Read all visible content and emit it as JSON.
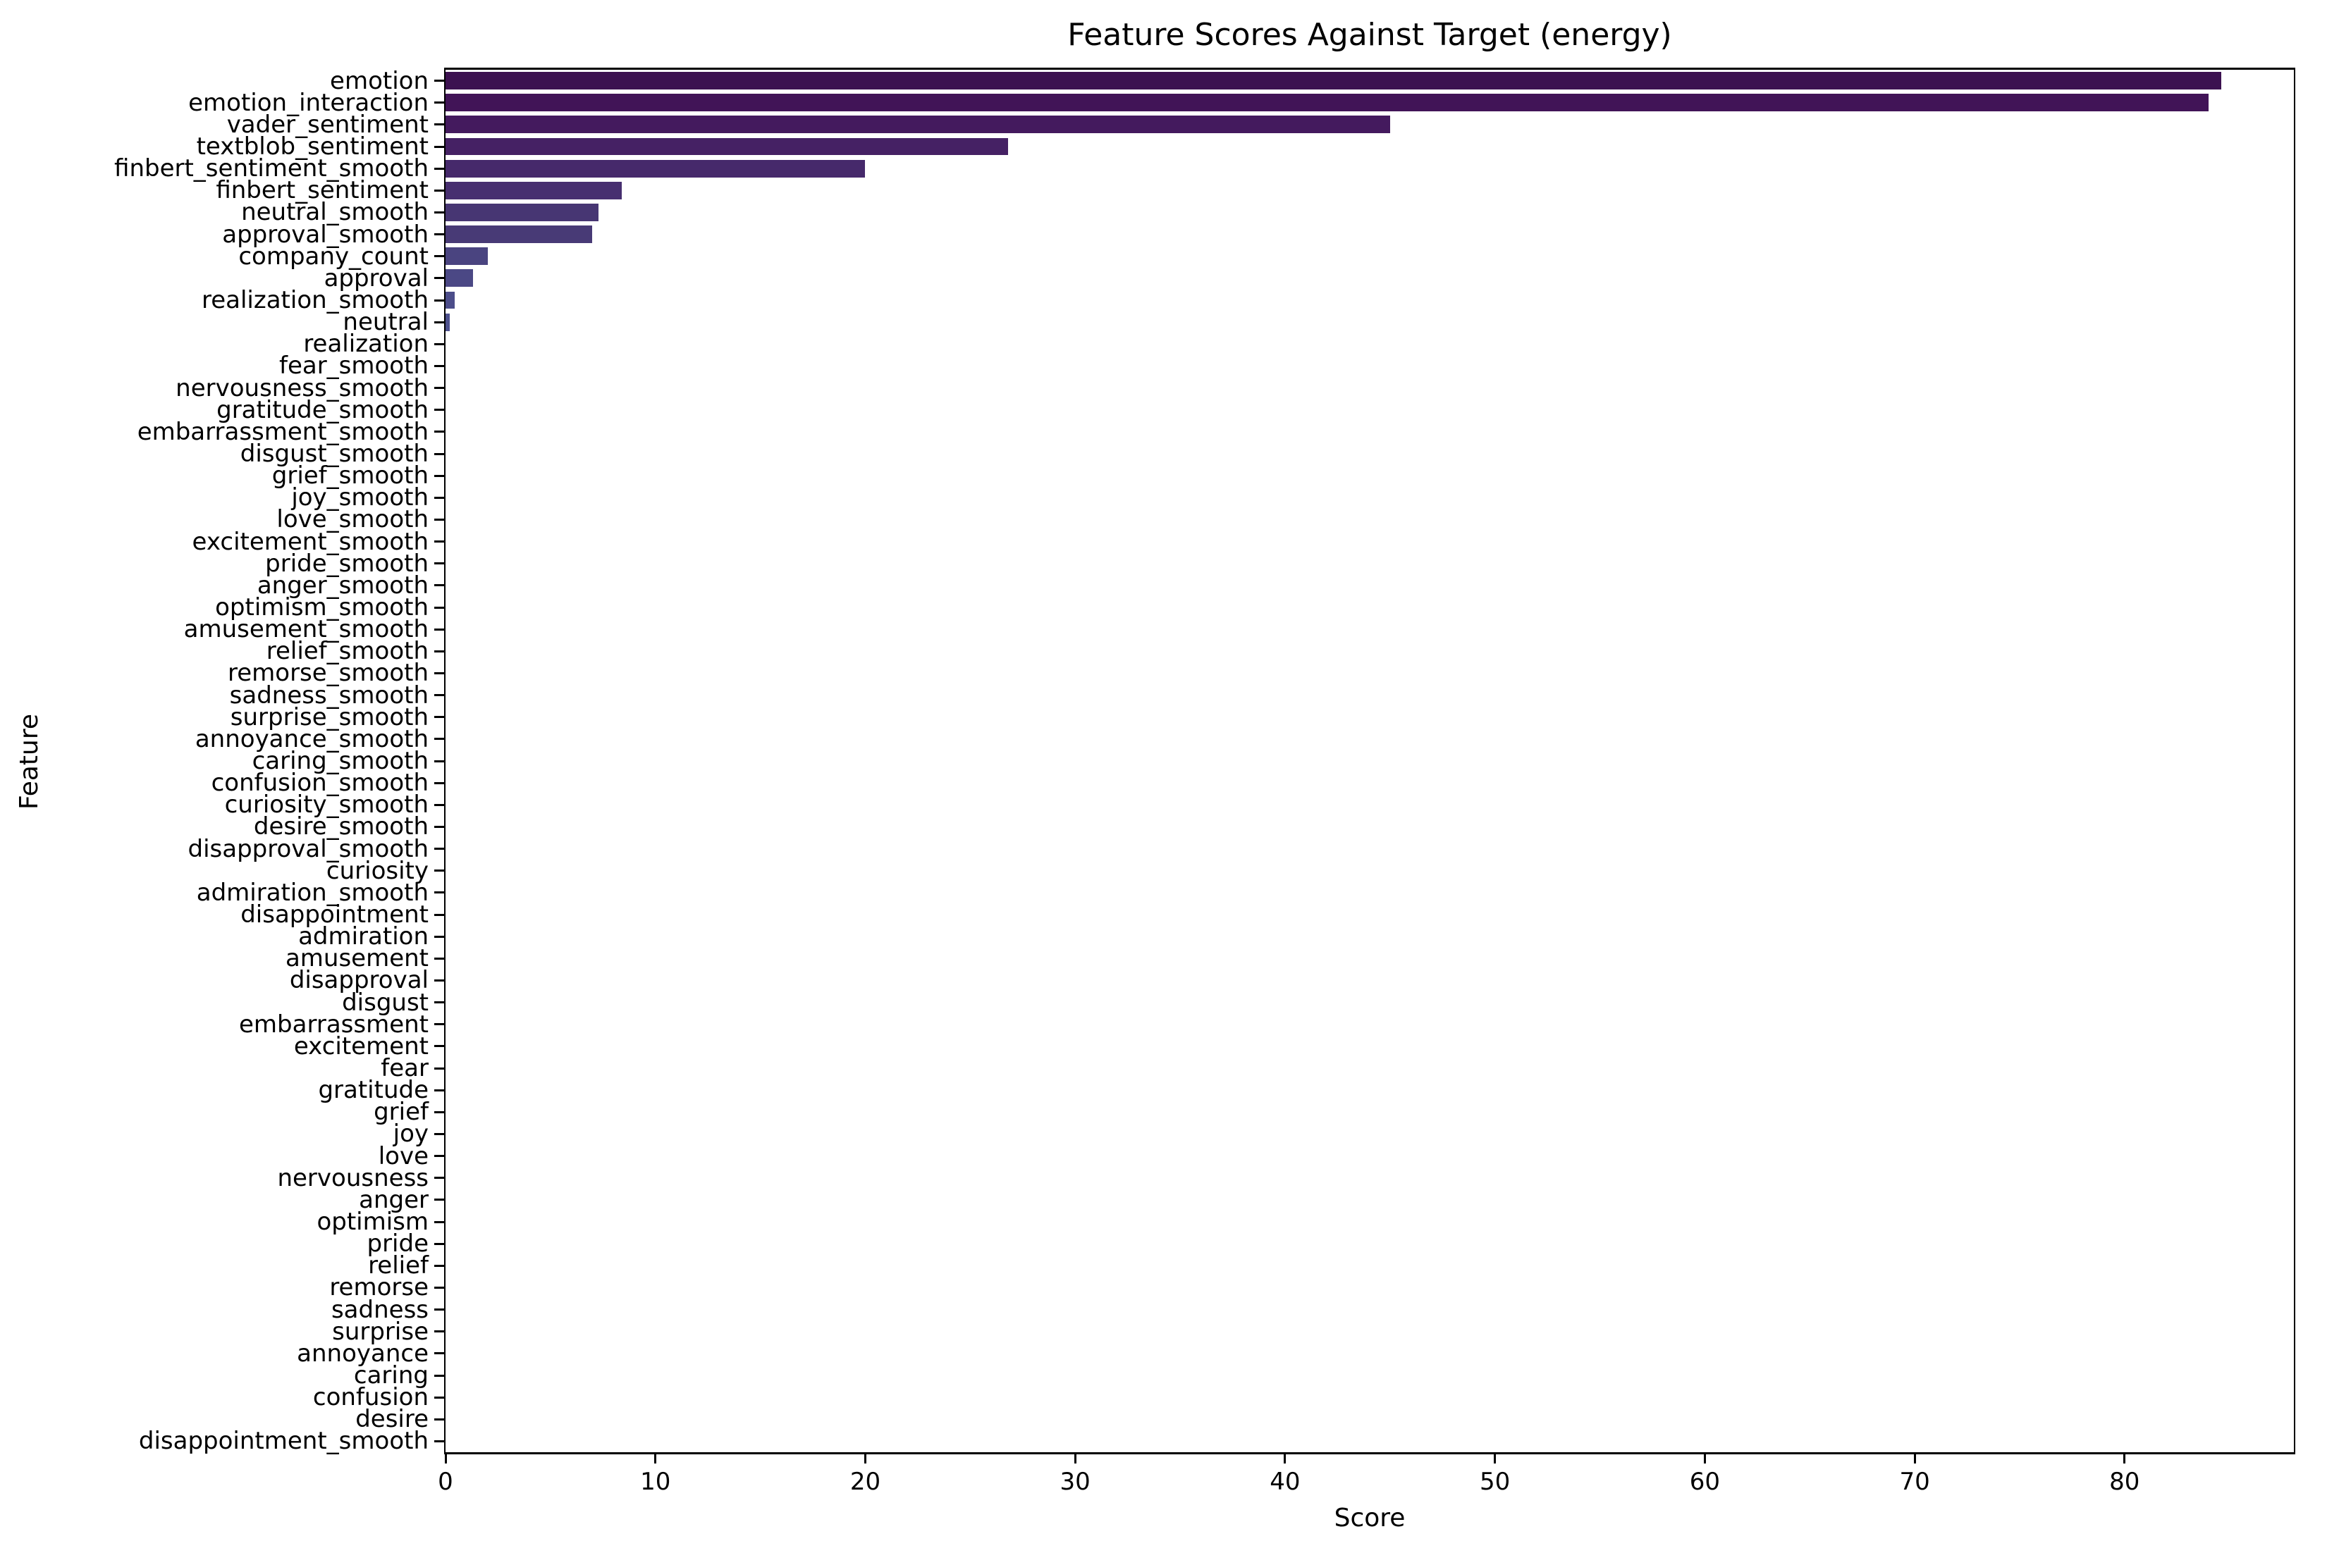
{
  "figure": {
    "background": "#ffffff",
    "text_color": "#000000",
    "axis_color": "#000000"
  },
  "chart_data": {
    "type": "bar",
    "orientation": "horizontal",
    "title": "Feature Scores Against Target (energy)",
    "xlabel": "Score",
    "ylabel": "Feature",
    "xlim": [
      0,
      88
    ],
    "x_ticks": [
      0,
      10,
      20,
      30,
      40,
      50,
      60,
      70,
      80
    ],
    "grid": false,
    "legend": false,
    "palette": "viridis",
    "bar_colors": [
      "#3c1150",
      "#411457",
      "#441a5e",
      "#452164",
      "#46296b",
      "#472f70",
      "#473673",
      "#483a76",
      "#4a4480",
      "#4b4885",
      "#4c4d8a",
      "#4d518d"
    ],
    "default_bar_color": "#4d528e",
    "categories": [
      "emotion",
      "emotion_interaction",
      "vader_sentiment",
      "textblob_sentiment",
      "finbert_sentiment_smooth",
      "finbert_sentiment",
      "neutral_smooth",
      "approval_smooth",
      "company_count",
      "approval",
      "realization_smooth",
      "neutral",
      "realization",
      "fear_smooth",
      "nervousness_smooth",
      "gratitude_smooth",
      "embarrassment_smooth",
      "disgust_smooth",
      "grief_smooth",
      "joy_smooth",
      "love_smooth",
      "excitement_smooth",
      "pride_smooth",
      "anger_smooth",
      "optimism_smooth",
      "amusement_smooth",
      "relief_smooth",
      "remorse_smooth",
      "sadness_smooth",
      "surprise_smooth",
      "annoyance_smooth",
      "caring_smooth",
      "confusion_smooth",
      "curiosity_smooth",
      "desire_smooth",
      "disapproval_smooth",
      "curiosity",
      "admiration_smooth",
      "disappointment",
      "admiration",
      "amusement",
      "disapproval",
      "disgust",
      "embarrassment",
      "excitement",
      "fear",
      "gratitude",
      "grief",
      "joy",
      "love",
      "nervousness",
      "anger",
      "optimism",
      "pride",
      "relief",
      "remorse",
      "sadness",
      "surprise",
      "annoyance",
      "caring",
      "confusion",
      "desire",
      "disappointment_smooth"
    ],
    "values": [
      84.6,
      84.0,
      45.0,
      26.8,
      20.0,
      8.4,
      7.3,
      7.0,
      2.0,
      1.3,
      0.45,
      0.2,
      0,
      0,
      0,
      0,
      0,
      0,
      0,
      0,
      0,
      0,
      0,
      0,
      0,
      0,
      0,
      0,
      0,
      0,
      0,
      0,
      0,
      0,
      0,
      0,
      0,
      0,
      0,
      0,
      0,
      0,
      0,
      0,
      0,
      0,
      0,
      0,
      0,
      0,
      0,
      0,
      0,
      0,
      0,
      0,
      0,
      0,
      0,
      0,
      0,
      0,
      0
    ]
  }
}
